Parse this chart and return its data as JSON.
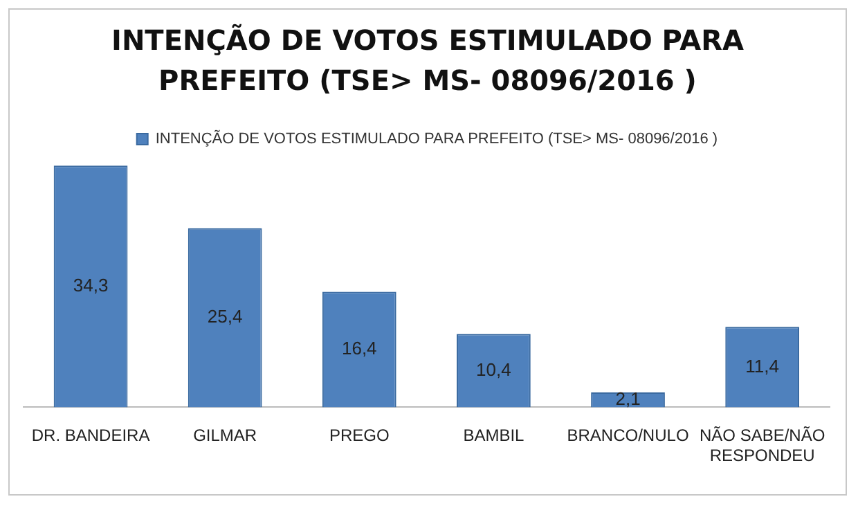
{
  "chart_data": {
    "type": "bar",
    "title": "INTENÇÃO DE VOTOS ESTIMULADO PARA PREFEITO (TSE> MS- 08096/2016 )",
    "categories": [
      "DR. BANDEIRA",
      "GILMAR",
      "PREGO",
      "BAMBIL",
      "BRANCO/NULO",
      "NÃO SABE/NÃO RESPONDEU"
    ],
    "series": [
      {
        "name": "INTENÇÃO DE VOTOS ESTIMULADO PARA PREFEITO (TSE> MS- 08096/2016 )",
        "color": "#4f81bd",
        "values": [
          34.3,
          25.4,
          16.4,
          10.4,
          2.1,
          11.4
        ],
        "value_labels": [
          "34,3",
          "25,4",
          "16,4",
          "10,4",
          "2,1",
          "11,4"
        ]
      }
    ],
    "legend": "top",
    "grid": false
  }
}
